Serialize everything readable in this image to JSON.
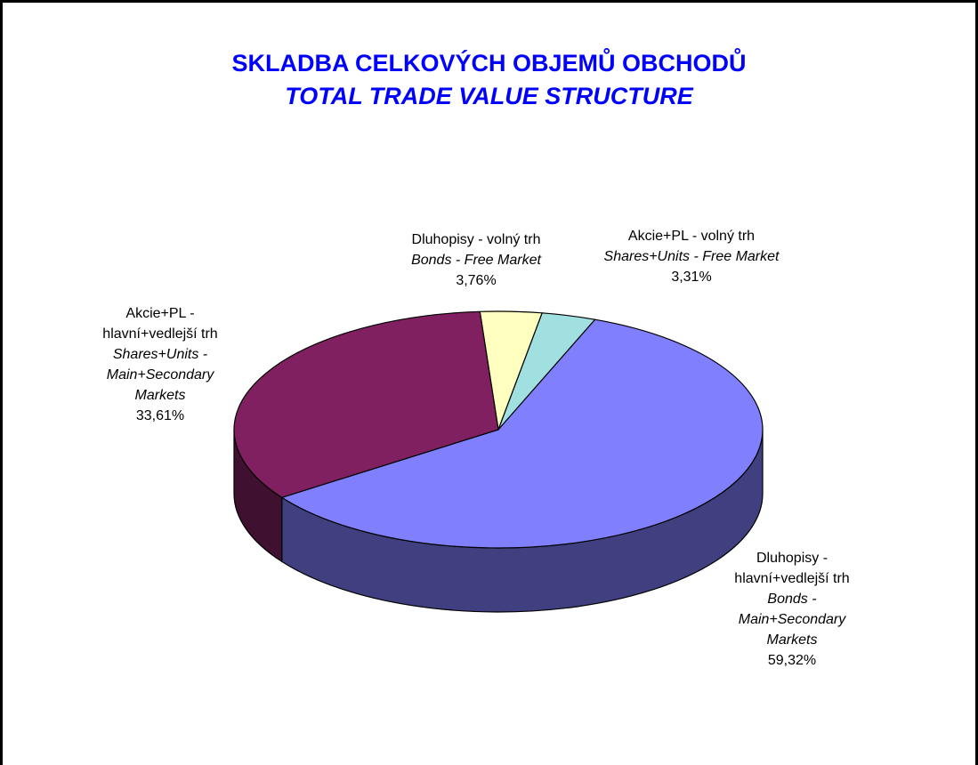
{
  "chart_data": {
    "type": "pie",
    "title": "SKLADBA CELKOVÝCH OBJEMŮ OBCHODŮ",
    "subtitle": "TOTAL TRADE VALUE STRUCTURE",
    "categories": [
      "Dluhopisy - volný trh",
      "Akcie+PL - volný trh",
      "Dluhopisy - hlavní+vedlejší trh",
      "Akcie+PL - hlavní+vedlejší trh"
    ],
    "categories_en": [
      "Bonds - Free Market",
      "Shares+Units - Free Market",
      "Bonds - Main+Secondary Markets",
      "Shares+Units - Main+Secondary Markets"
    ],
    "values": [
      3.76,
      3.31,
      59.32,
      33.61
    ],
    "value_labels": [
      "3,76%",
      "3,31%",
      "59,32%",
      "33,61%"
    ],
    "colors": [
      "#ffffc0",
      "#a0e0e0",
      "#8080ff",
      "#802060"
    ]
  }
}
